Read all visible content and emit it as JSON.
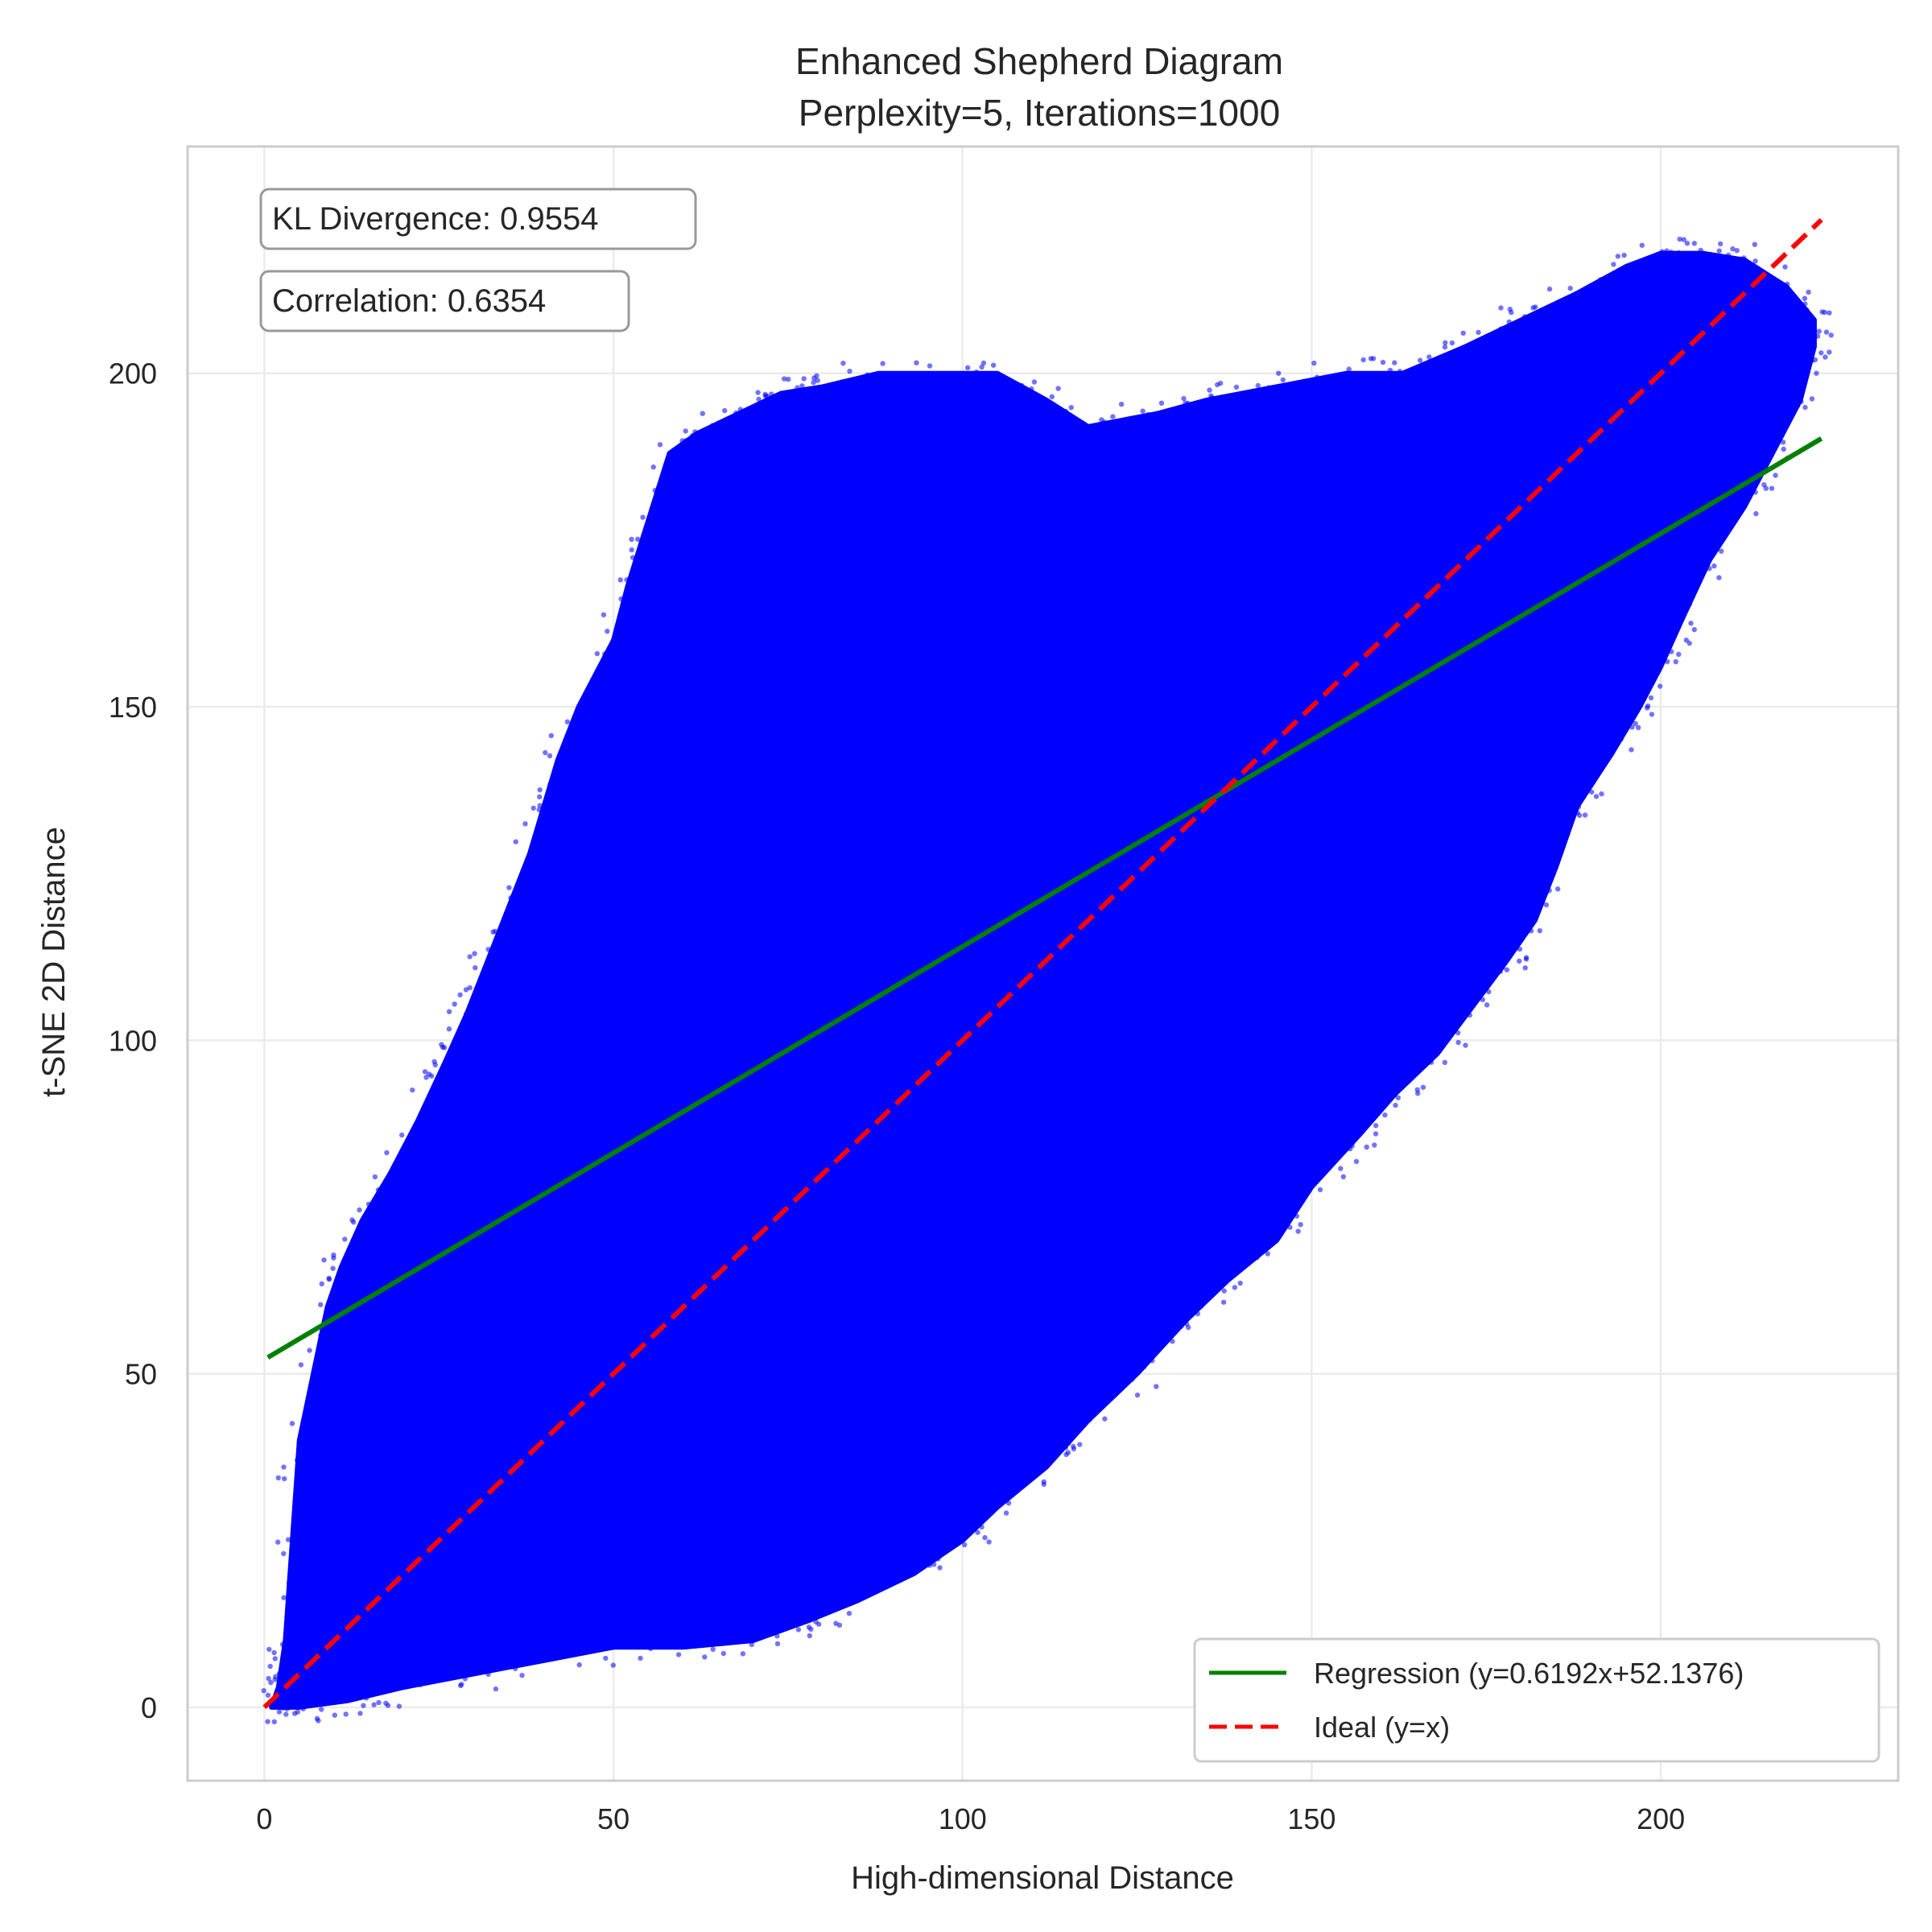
{
  "chart_data": {
    "type": "scatter",
    "title": "Enhanced Shepherd Diagram",
    "subtitle": "Perplexity=5, Iterations=1000",
    "xlabel": "High-dimensional Distance",
    "ylabel": "t-SNE 2D Distance",
    "xlim": [
      -11,
      234
    ],
    "ylim": [
      -11,
      234
    ],
    "xticks": [
      0,
      50,
      100,
      150,
      200
    ],
    "yticks": [
      0,
      50,
      100,
      150,
      200
    ],
    "grid": true,
    "point_color": "#0000ff",
    "scatter_region": {
      "description_points_upper": [
        [
          1,
          0
        ],
        [
          2,
          3
        ],
        [
          3,
          10
        ],
        [
          4,
          25
        ],
        [
          5,
          40
        ],
        [
          7,
          50
        ],
        [
          9,
          60
        ],
        [
          11,
          66
        ],
        [
          14,
          73
        ],
        [
          18,
          80
        ],
        [
          22,
          88
        ],
        [
          26,
          97
        ],
        [
          29,
          104
        ],
        [
          32,
          112
        ],
        [
          35,
          120
        ],
        [
          38,
          128
        ],
        [
          40,
          135
        ],
        [
          42,
          142
        ],
        [
          45,
          150
        ],
        [
          50,
          160
        ],
        [
          52,
          168
        ],
        [
          55,
          178
        ],
        [
          58,
          188
        ],
        [
          62,
          191
        ],
        [
          68,
          194
        ],
        [
          74,
          197
        ],
        [
          80,
          198
        ],
        [
          88,
          200
        ],
        [
          95,
          200
        ],
        [
          105,
          200
        ],
        [
          112,
          196
        ],
        [
          118,
          192
        ],
        [
          128,
          194
        ],
        [
          135,
          196
        ],
        [
          145,
          198
        ],
        [
          155,
          200
        ],
        [
          163,
          200
        ],
        [
          172,
          204
        ],
        [
          180,
          208
        ],
        [
          188,
          212
        ],
        [
          195,
          216
        ],
        [
          200,
          218
        ],
        [
          206,
          218
        ],
        [
          212,
          217
        ],
        [
          218,
          213
        ],
        [
          222,
          208
        ],
        [
          222,
          204
        ]
      ],
      "description_points_lower": [
        [
          222,
          204
        ],
        [
          220,
          196
        ],
        [
          216,
          188
        ],
        [
          212,
          180
        ],
        [
          207,
          172
        ],
        [
          203,
          163
        ],
        [
          200,
          156
        ],
        [
          197,
          150
        ],
        [
          193,
          143
        ],
        [
          188,
          135
        ],
        [
          185,
          126
        ],
        [
          182,
          118
        ],
        [
          178,
          112
        ],
        [
          173,
          105
        ],
        [
          168,
          98
        ],
        [
          162,
          92
        ],
        [
          157,
          86
        ],
        [
          150,
          78
        ],
        [
          145,
          70
        ],
        [
          138,
          64
        ],
        [
          132,
          58
        ],
        [
          125,
          50
        ],
        [
          118,
          43
        ],
        [
          112,
          36
        ],
        [
          105,
          30
        ],
        [
          100,
          25
        ],
        [
          93,
          20
        ],
        [
          85,
          16
        ],
        [
          78,
          13
        ],
        [
          70,
          10
        ],
        [
          60,
          9
        ],
        [
          50,
          9
        ],
        [
          40,
          7
        ],
        [
          30,
          5
        ],
        [
          20,
          3
        ],
        [
          12,
          1
        ],
        [
          5,
          0
        ],
        [
          1,
          0
        ]
      ]
    },
    "series": [
      {
        "name": "Regression (y=0.6192x+52.1376)",
        "kind": "line",
        "color": "#008000",
        "style": "solid",
        "slope": 0.6192,
        "intercept": 52.1376,
        "x_range": [
          0.5,
          223
        ]
      },
      {
        "name": "Ideal (y=x)",
        "kind": "line",
        "color": "#ff0000",
        "style": "dashed",
        "slope": 1,
        "intercept": 0,
        "x_range": [
          0,
          223
        ]
      }
    ],
    "annotations": {
      "kl_text": "KL Divergence: 0.9554",
      "corr_text": "Correlation: 0.6354"
    },
    "legend_placement": "lower-right"
  }
}
